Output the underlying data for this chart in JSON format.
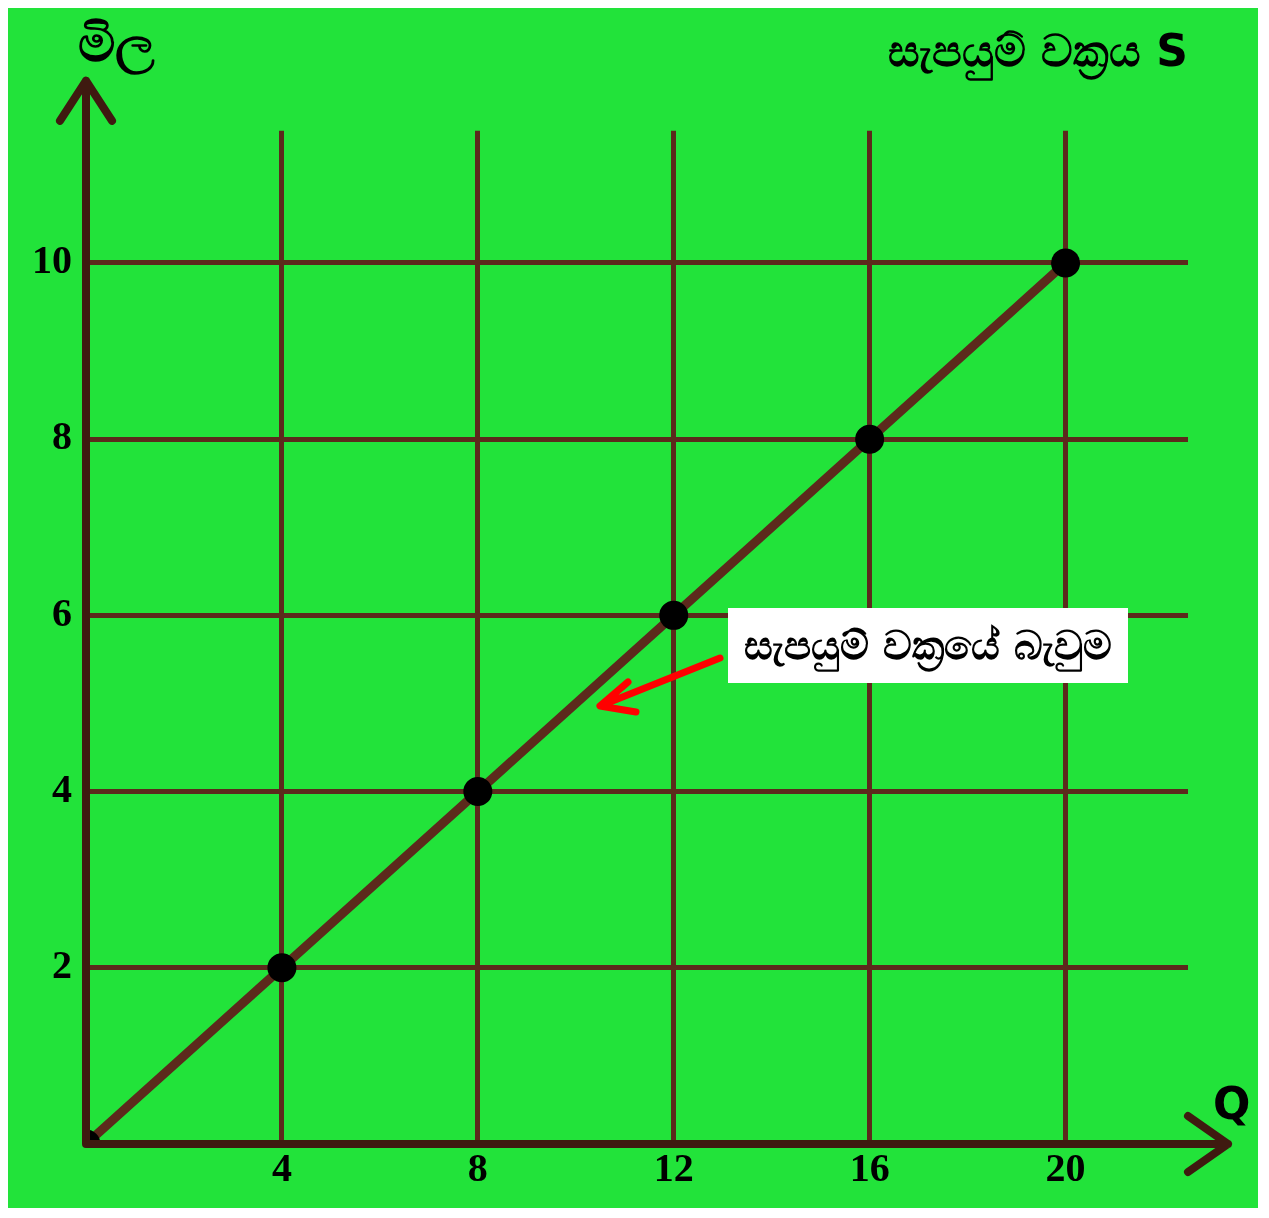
{
  "chart_data": {
    "type": "line",
    "title": "සැපයුම් වක්‍රය S",
    "xlabel": "Q",
    "ylabel": "මිල",
    "x": [
      0,
      4,
      8,
      12,
      16,
      20
    ],
    "series": [
      {
        "color": "#5c2a1c",
        "values": [
          0,
          2,
          4,
          6,
          8,
          10
        ]
      }
    ],
    "xlim": [
      0,
      22.5
    ],
    "xticks": [
      4,
      8,
      12,
      16,
      20
    ],
    "ylim": [
      0,
      11.5
    ],
    "yticks": [
      2,
      4,
      6,
      8,
      10
    ],
    "grid": true,
    "marker": "circle",
    "line_style": "solid",
    "legend": false,
    "annotations": [
      "සැපයුම් වක්‍රයේ බැවුම"
    ]
  }
}
